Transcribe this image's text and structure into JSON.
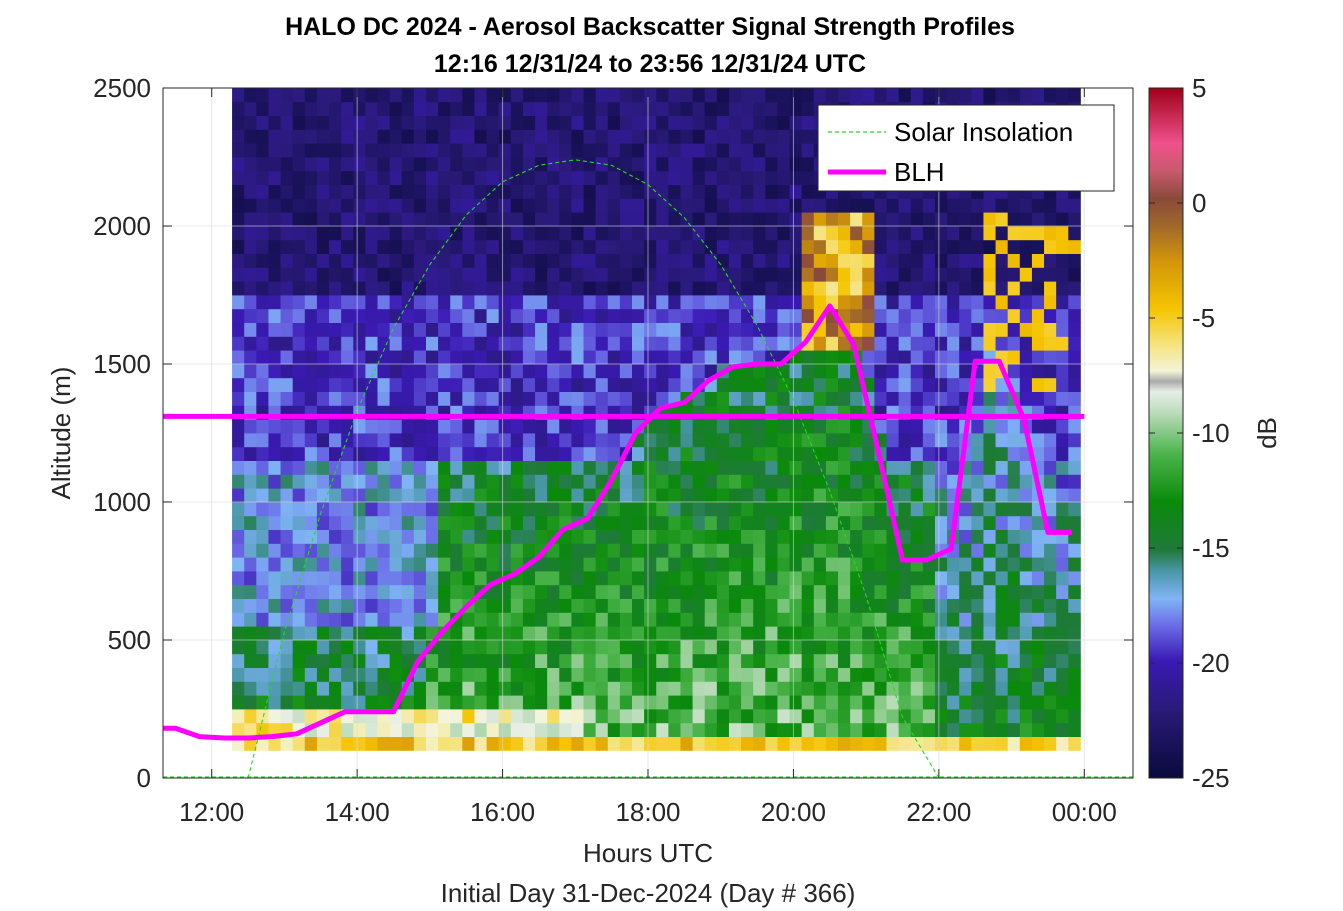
{
  "chart_data": {
    "type": "heatmap",
    "title": "HALO DC 2024 - Aerosol Backscatter Signal Strength Profiles",
    "subtitle": "12:16 12/31/24 to 23:56 12/31/24  UTC",
    "xlabel": "Hours UTC",
    "xlabel2": "Initial Day 31-Dec-2024 (Day # 366)",
    "ylabel": "Altitude (m)",
    "colorbar_label": "dB",
    "xlim": [
      11.33,
      24.67
    ],
    "ylim": [
      0,
      2500
    ],
    "clim": [
      -25,
      5
    ],
    "x_ticks": [
      {
        "value": 12,
        "label": "12:00"
      },
      {
        "value": 14,
        "label": "14:00"
      },
      {
        "value": 16,
        "label": "16:00"
      },
      {
        "value": 18,
        "label": "18:00"
      },
      {
        "value": 20,
        "label": "20:00"
      },
      {
        "value": 22,
        "label": "22:00"
      },
      {
        "value": 24,
        "label": "00:00"
      }
    ],
    "y_ticks": [
      {
        "value": 0,
        "label": "0"
      },
      {
        "value": 500,
        "label": "500"
      },
      {
        "value": 1000,
        "label": "1000"
      },
      {
        "value": 1500,
        "label": "1500"
      },
      {
        "value": 2000,
        "label": "2000"
      },
      {
        "value": 2500,
        "label": "2500"
      }
    ],
    "c_ticks": [
      {
        "value": 5,
        "label": "5"
      },
      {
        "value": 0,
        "label": "0"
      },
      {
        "value": -5,
        "label": "-5"
      },
      {
        "value": -10,
        "label": "-10"
      },
      {
        "value": -15,
        "label": "-15"
      },
      {
        "value": -20,
        "label": "-20"
      },
      {
        "value": -25,
        "label": "-25"
      }
    ],
    "grid": true,
    "legend_position": "top-right",
    "series": [
      {
        "name": "Solar Insolation",
        "style": "dashed",
        "color": "#22dd22",
        "x": [
          12.5,
          13.0,
          13.5,
          14.0,
          14.5,
          15.0,
          15.5,
          16.0,
          16.5,
          17.0,
          17.5,
          18.0,
          18.5,
          19.0,
          19.5,
          20.0,
          20.5,
          21.0,
          21.5,
          22.0
        ],
        "y": [
          0,
          530,
          960,
          1330,
          1630,
          1860,
          2040,
          2160,
          2220,
          2240,
          2220,
          2150,
          2030,
          1860,
          1640,
          1370,
          1040,
          660,
          220,
          0
        ]
      },
      {
        "name": "BLH",
        "style": "solid",
        "color": "#ff00ff",
        "x": [
          11.33,
          11.5,
          11.83,
          12.17,
          12.5,
          12.83,
          13.17,
          13.5,
          13.83,
          14.17,
          14.5,
          14.83,
          15.17,
          15.5,
          15.83,
          16.17,
          16.5,
          16.83,
          17.17,
          17.5,
          17.83,
          18.17,
          18.5,
          18.83,
          19.17,
          19.5,
          19.83,
          20.17,
          20.5,
          20.83,
          21.17,
          21.5,
          21.83,
          22.17,
          22.5,
          22.83,
          23.17,
          23.5,
          23.83
        ],
        "y": [
          180,
          180,
          150,
          145,
          145,
          150,
          160,
          200,
          240,
          240,
          240,
          420,
          530,
          620,
          700,
          740,
          800,
          900,
          940,
          1080,
          1250,
          1340,
          1360,
          1440,
          1490,
          1500,
          1500,
          1580,
          1710,
          1570,
          1180,
          790,
          790,
          830,
          1510,
          1510,
          1300,
          890,
          890
        ]
      },
      {
        "name": "",
        "style": "solid",
        "color": "#ff00ff",
        "x": [
          11.33,
          24.0
        ],
        "y": [
          1310,
          1310
        ]
      }
    ]
  }
}
